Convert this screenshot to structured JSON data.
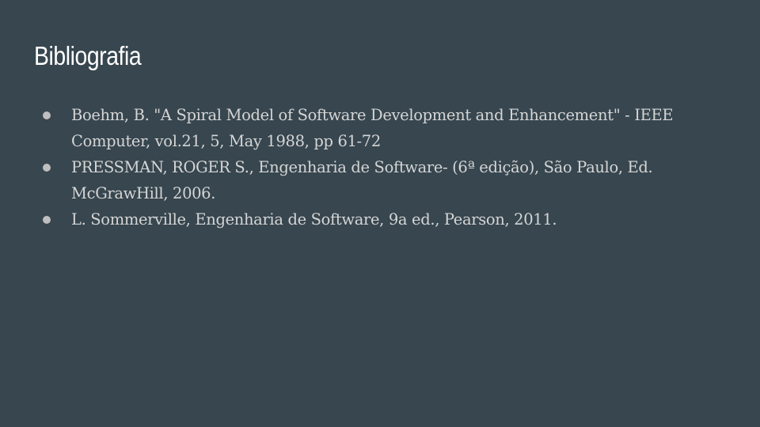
{
  "slide": {
    "title": "Bibliografia",
    "background_color": "#37464f",
    "text_color": "#d5d5d5",
    "title_color": "#ffffff",
    "bullet_icon": "bullet-dot-icon",
    "references": [
      "Boehm, B. \"A Spiral Model of Software Development and Enhancement\" - IEEE Computer, vol.21, 5, May 1988, pp 61-72",
      "PRESSMAN, ROGER S., Engenharia de Software- (6ª edição), São Paulo, Ed. McGrawHill, 2006.",
      "L. Sommerville, Engenharia de Software, 9a ed., Pearson, 2011."
    ]
  }
}
